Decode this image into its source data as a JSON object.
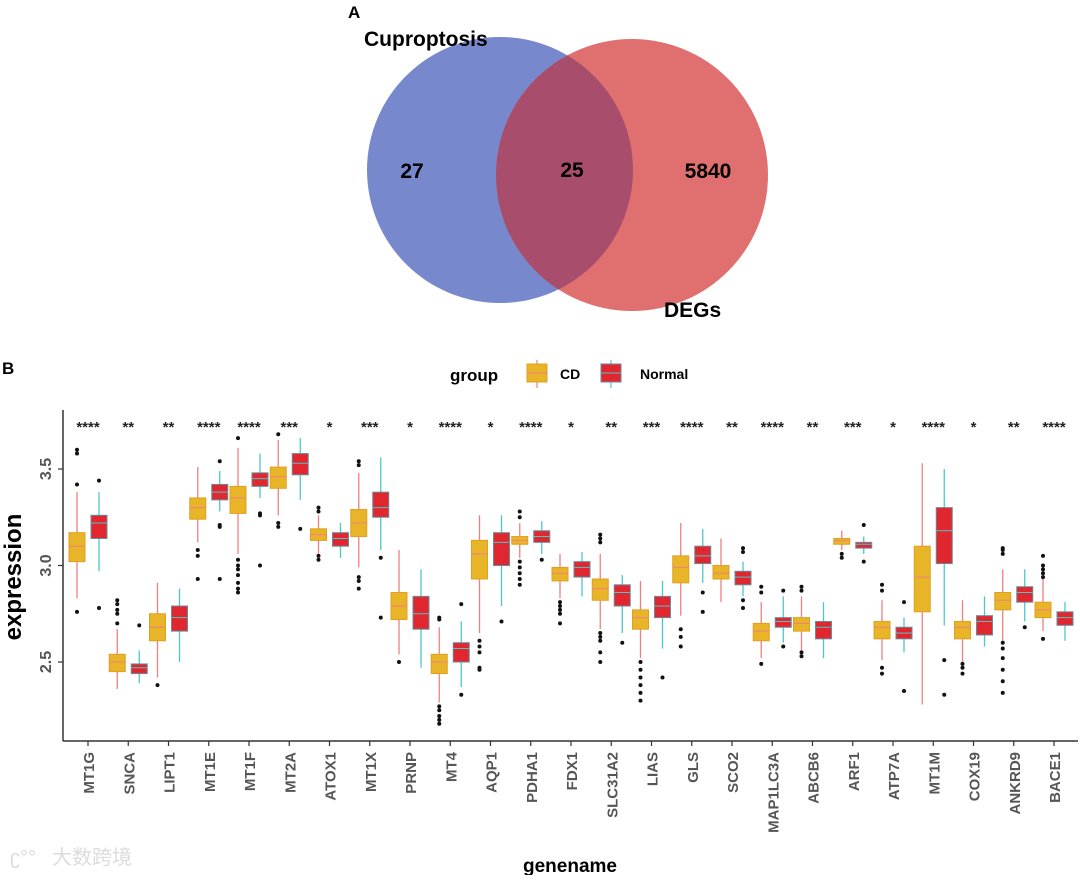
{
  "panel_a": {
    "label": "A",
    "set1_name": "Cuproptosis",
    "set2_name": "DEGs",
    "only_set1": "27",
    "overlap": "25",
    "only_set2": "5840",
    "colors": {
      "set1": "#7788cc",
      "set2": "#e07070",
      "overlap": "#a84d6c"
    }
  },
  "panel_b": {
    "label": "B"
  },
  "watermark": "大数跨境",
  "chart_data": {
    "type": "boxplot",
    "xlabel": "genename",
    "ylabel": "expression",
    "ylim": [
      2.1,
      3.8
    ],
    "yticks": [
      "2.5",
      "3.0",
      "3.5"
    ],
    "legend": {
      "title": "group",
      "entries": [
        "CD",
        "Normal"
      ],
      "placement": "top"
    },
    "colors": {
      "CD": "#e8b528",
      "CD_line": "#f08080",
      "Normal": "#e0262e",
      "Normal_line": "#4dc6c8"
    },
    "categories": [
      "MT1G",
      "SNCA",
      "LIPT1",
      "MT1E",
      "MT1F",
      "MT2A",
      "ATOX1",
      "MT1X",
      "PRNP",
      "MT4",
      "AQP1",
      "PDHA1",
      "FDX1",
      "SLC31A2",
      "LIAS",
      "GLS",
      "SCO2",
      "MAP1LC3A",
      "ABCB6",
      "ARF1",
      "ATP7A",
      "MT1M",
      "COX19",
      "ANKRD9",
      "BACE1"
    ],
    "significance": [
      "****",
      "**",
      "**",
      "****",
      "****",
      "***",
      "*",
      "***",
      "*",
      "****",
      "*",
      "****",
      "*",
      "**",
      "***",
      "****",
      "**",
      "****",
      "**",
      "***",
      "*",
      "****",
      "*",
      "**",
      "****"
    ],
    "series": [
      {
        "name": "CD",
        "boxes": [
          {
            "lo": 2.83,
            "q1": 3.02,
            "med": 3.1,
            "q3": 3.17,
            "hi": 3.38,
            "out": [
              3.6,
              3.58,
              3.42,
              2.76
            ]
          },
          {
            "lo": 2.36,
            "q1": 2.45,
            "med": 2.5,
            "q3": 2.54,
            "hi": 2.67,
            "out": [
              2.82,
              2.8,
              2.77,
              2.75,
              2.7
            ]
          },
          {
            "lo": 2.42,
            "q1": 2.61,
            "med": 2.68,
            "q3": 2.75,
            "hi": 2.91,
            "out": [
              2.38
            ]
          },
          {
            "lo": 3.12,
            "q1": 3.24,
            "med": 3.3,
            "q3": 3.35,
            "hi": 3.51,
            "out": [
              3.08,
              3.05,
              2.93
            ]
          },
          {
            "lo": 3.06,
            "q1": 3.27,
            "med": 3.35,
            "q3": 3.41,
            "hi": 3.61,
            "out": [
              3.66,
              3.03,
              3.0,
              2.98,
              2.95,
              2.91,
              2.88,
              2.86
            ]
          },
          {
            "lo": 3.26,
            "q1": 3.4,
            "med": 3.46,
            "q3": 3.51,
            "hi": 3.65,
            "out": [
              3.68,
              3.22,
              3.2
            ]
          },
          {
            "lo": 3.06,
            "q1": 3.13,
            "med": 3.16,
            "q3": 3.19,
            "hi": 3.26,
            "out": [
              3.3,
              3.28,
              3.05,
              3.03
            ]
          },
          {
            "lo": 2.99,
            "q1": 3.15,
            "med": 3.22,
            "q3": 3.29,
            "hi": 3.48,
            "out": [
              3.54,
              3.52,
              2.94,
              2.92,
              2.88
            ]
          },
          {
            "lo": 2.54,
            "q1": 2.72,
            "med": 2.79,
            "q3": 2.86,
            "hi": 3.08,
            "out": [
              2.5
            ]
          },
          {
            "lo": 2.29,
            "q1": 2.44,
            "med": 2.5,
            "q3": 2.54,
            "hi": 2.68,
            "out": [
              2.73,
              2.72,
              2.27,
              2.25,
              2.22,
              2.2,
              2.18
            ]
          },
          {
            "lo": 2.65,
            "q1": 2.93,
            "med": 3.06,
            "q3": 3.13,
            "hi": 3.26,
            "out": [
              2.61,
              2.58,
              2.55,
              2.47,
              2.46
            ]
          },
          {
            "lo": 3.04,
            "q1": 3.11,
            "med": 3.13,
            "q3": 3.15,
            "hi": 3.22,
            "out": [
              3.28,
              3.25,
              3.02,
              2.99,
              2.96,
              2.93,
              2.9
            ]
          },
          {
            "lo": 2.83,
            "q1": 2.92,
            "med": 2.96,
            "q3": 2.99,
            "hi": 3.06,
            "out": [
              2.81,
              2.79,
              2.77,
              2.75,
              2.7
            ]
          },
          {
            "lo": 2.67,
            "q1": 2.82,
            "med": 2.88,
            "q3": 2.93,
            "hi": 3.06,
            "out": [
              3.16,
              3.14,
              3.12,
              2.65,
              2.63,
              2.61,
              2.55,
              2.5
            ]
          },
          {
            "lo": 2.52,
            "q1": 2.67,
            "med": 2.73,
            "q3": 2.77,
            "hi": 2.92,
            "out": [
              2.5,
              2.46,
              2.42,
              2.38,
              2.34,
              2.3
            ]
          },
          {
            "lo": 2.74,
            "q1": 2.91,
            "med": 2.99,
            "q3": 3.05,
            "hi": 3.22,
            "out": [
              2.67,
              2.63,
              2.58
            ]
          },
          {
            "lo": 2.81,
            "q1": 2.93,
            "med": 2.96,
            "q3": 3.0,
            "hi": 3.14,
            "out": []
          },
          {
            "lo": 2.52,
            "q1": 2.61,
            "med": 2.66,
            "q3": 2.7,
            "hi": 2.81,
            "out": [
              2.89,
              2.86,
              2.49
            ]
          },
          {
            "lo": 2.56,
            "q1": 2.66,
            "med": 2.7,
            "q3": 2.73,
            "hi": 2.84,
            "out": [
              2.89,
              2.87,
              2.55,
              2.53
            ]
          },
          {
            "lo": 3.08,
            "q1": 3.11,
            "med": 3.13,
            "q3": 3.14,
            "hi": 3.18,
            "out": [
              3.06,
              3.04
            ]
          },
          {
            "lo": 2.51,
            "q1": 2.62,
            "med": 2.68,
            "q3": 2.71,
            "hi": 2.82,
            "out": [
              2.9,
              2.87,
              2.47,
              2.44
            ]
          },
          {
            "lo": 2.28,
            "q1": 2.76,
            "med": 2.94,
            "q3": 3.1,
            "hi": 3.53,
            "out": []
          },
          {
            "lo": 2.47,
            "q1": 2.62,
            "med": 2.68,
            "q3": 2.71,
            "hi": 2.82,
            "out": [
              2.49,
              2.47,
              2.44
            ]
          },
          {
            "lo": 2.61,
            "q1": 2.77,
            "med": 2.82,
            "q3": 2.86,
            "hi": 2.98,
            "out": [
              3.09,
              3.08,
              3.06,
              2.6,
              2.57,
              2.52,
              2.46,
              2.4,
              2.34
            ]
          },
          {
            "lo": 2.66,
            "q1": 2.73,
            "med": 2.77,
            "q3": 2.81,
            "hi": 2.94,
            "out": [
              3.05,
              3.0,
              2.98,
              2.96,
              2.94,
              2.62
            ]
          }
        ]
      },
      {
        "name": "Normal",
        "boxes": [
          {
            "lo": 2.97,
            "q1": 3.14,
            "med": 3.22,
            "q3": 3.26,
            "hi": 3.38,
            "out": [
              3.44,
              2.78
            ]
          },
          {
            "lo": 2.39,
            "q1": 2.44,
            "med": 2.47,
            "q3": 2.49,
            "hi": 2.56,
            "out": [
              2.69
            ]
          },
          {
            "lo": 2.5,
            "q1": 2.66,
            "med": 2.73,
            "q3": 2.79,
            "hi": 2.88,
            "out": []
          },
          {
            "lo": 3.28,
            "q1": 3.34,
            "med": 3.38,
            "q3": 3.42,
            "hi": 3.49,
            "out": [
              3.54,
              3.21,
              3.2,
              2.93
            ]
          },
          {
            "lo": 3.35,
            "q1": 3.41,
            "med": 3.45,
            "q3": 3.48,
            "hi": 3.58,
            "out": [
              3.27,
              3.26,
              3.0
            ]
          },
          {
            "lo": 3.34,
            "q1": 3.47,
            "med": 3.53,
            "q3": 3.58,
            "hi": 3.66,
            "out": [
              3.19
            ]
          },
          {
            "lo": 3.04,
            "q1": 3.1,
            "med": 3.14,
            "q3": 3.17,
            "hi": 3.22,
            "out": []
          },
          {
            "lo": 3.08,
            "q1": 3.25,
            "med": 3.3,
            "q3": 3.38,
            "hi": 3.56,
            "out": [
              3.04,
              2.73
            ]
          },
          {
            "lo": 2.47,
            "q1": 2.67,
            "med": 2.75,
            "q3": 2.84,
            "hi": 2.98,
            "out": []
          },
          {
            "lo": 2.37,
            "q1": 2.5,
            "med": 2.57,
            "q3": 2.6,
            "hi": 2.71,
            "out": [
              2.8,
              2.33
            ]
          },
          {
            "lo": 2.79,
            "q1": 3.0,
            "med": 3.12,
            "q3": 3.17,
            "hi": 3.26,
            "out": [
              2.71
            ]
          },
          {
            "lo": 3.06,
            "q1": 3.12,
            "med": 3.15,
            "q3": 3.18,
            "hi": 3.23,
            "out": [
              3.03
            ]
          },
          {
            "lo": 2.84,
            "q1": 2.94,
            "med": 2.99,
            "q3": 3.02,
            "hi": 3.07,
            "out": []
          },
          {
            "lo": 2.65,
            "q1": 2.79,
            "med": 2.86,
            "q3": 2.9,
            "hi": 2.95,
            "out": [
              2.6
            ]
          },
          {
            "lo": 2.57,
            "q1": 2.73,
            "med": 2.79,
            "q3": 2.84,
            "hi": 2.92,
            "out": [
              2.42
            ]
          },
          {
            "lo": 2.91,
            "q1": 3.01,
            "med": 3.05,
            "q3": 3.1,
            "hi": 3.19,
            "out": [
              2.86,
              2.76
            ]
          },
          {
            "lo": 2.84,
            "q1": 2.9,
            "med": 2.94,
            "q3": 2.97,
            "hi": 3.02,
            "out": [
              3.09,
              3.07,
              2.82,
              2.78
            ]
          },
          {
            "lo": 2.6,
            "q1": 2.68,
            "med": 2.71,
            "q3": 2.73,
            "hi": 2.84,
            "out": [
              2.87,
              2.58
            ]
          },
          {
            "lo": 2.52,
            "q1": 2.62,
            "med": 2.68,
            "q3": 2.71,
            "hi": 2.81,
            "out": []
          },
          {
            "lo": 3.06,
            "q1": 3.09,
            "med": 3.11,
            "q3": 3.12,
            "hi": 3.15,
            "out": [
              3.21,
              3.02
            ]
          },
          {
            "lo": 2.55,
            "q1": 2.62,
            "med": 2.65,
            "q3": 2.68,
            "hi": 2.73,
            "out": [
              2.81,
              2.35
            ]
          },
          {
            "lo": 2.69,
            "q1": 3.01,
            "med": 3.18,
            "q3": 3.3,
            "hi": 3.5,
            "out": [
              2.51,
              2.33
            ]
          },
          {
            "lo": 2.58,
            "q1": 2.64,
            "med": 2.71,
            "q3": 2.74,
            "hi": 2.84,
            "out": []
          },
          {
            "lo": 2.71,
            "q1": 2.81,
            "med": 2.86,
            "q3": 2.89,
            "hi": 2.98,
            "out": [
              2.68
            ]
          },
          {
            "lo": 2.61,
            "q1": 2.69,
            "med": 2.73,
            "q3": 2.76,
            "hi": 2.81,
            "out": []
          }
        ]
      }
    ]
  }
}
